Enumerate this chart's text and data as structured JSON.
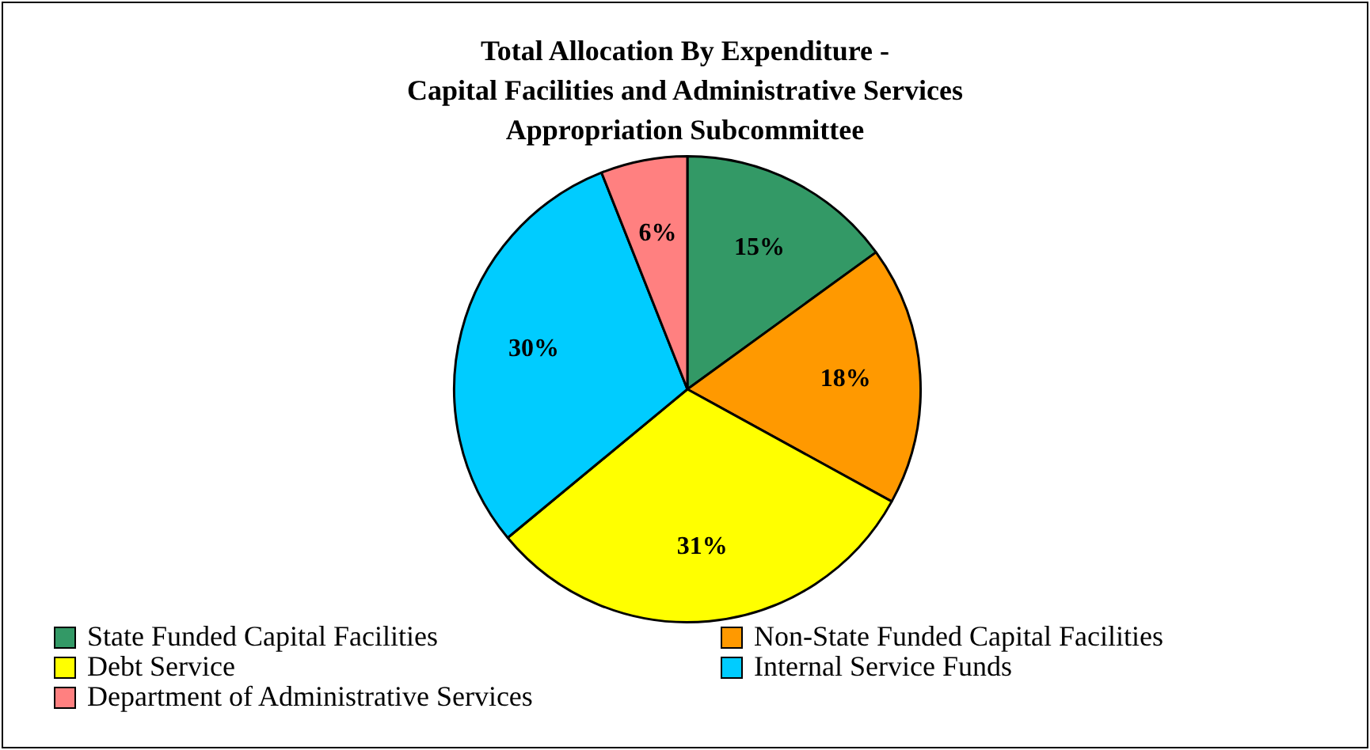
{
  "chart_data": {
    "type": "pie",
    "title": "Total Allocation By Expenditure -\nCapital Facilities and Administrative Services\nAppropriation Subcommittee",
    "categories": [
      "State Funded Capital Facilities",
      "Non-State Funded Capital Facilities",
      "Debt Service",
      "Internal Service Funds",
      "Department of Administrative Services"
    ],
    "values": [
      15,
      18,
      31,
      30,
      6
    ],
    "colors": [
      "#339966",
      "#ff9900",
      "#ffff00",
      "#00ccff",
      "#ff8080"
    ],
    "value_labels": [
      "15%",
      "18%",
      "31%",
      "30%",
      "6%"
    ],
    "legend": "bottom"
  }
}
